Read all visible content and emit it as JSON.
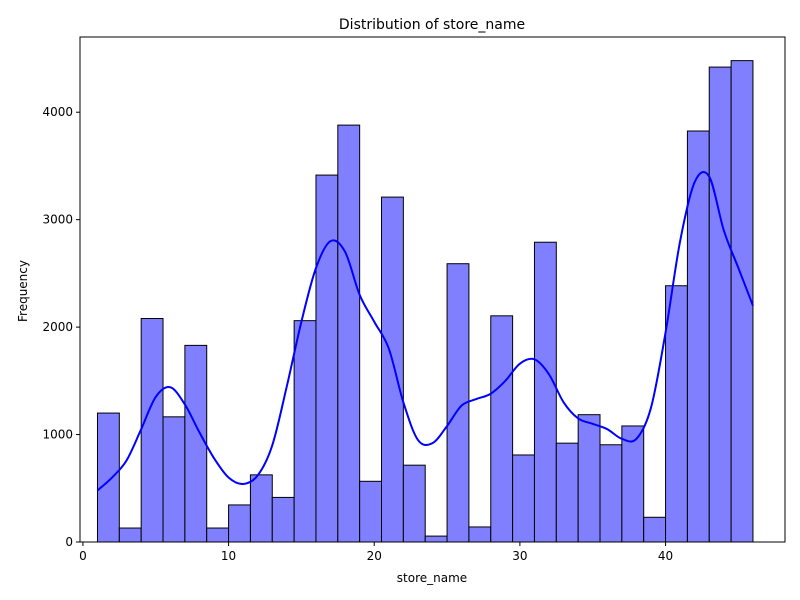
{
  "chart_data": {
    "type": "bar",
    "title": "Distribution of store_name",
    "xlabel": "store_name",
    "ylabel": "Frequency",
    "xlim": [
      -0.2,
      48.2
    ],
    "ylim": [
      0,
      4700
    ],
    "xticks": [
      0,
      10,
      20,
      30,
      40
    ],
    "yticks": [
      0,
      1000,
      2000,
      3000,
      4000
    ],
    "bar_color": "#8080ff",
    "edge_color": "#000000",
    "kde_color": "#0000ff",
    "bins": [
      {
        "start": 1.0,
        "end": 2.5,
        "count": 1200
      },
      {
        "start": 2.5,
        "end": 4.0,
        "count": 130
      },
      {
        "start": 4.0,
        "end": 5.5,
        "count": 2080
      },
      {
        "start": 5.5,
        "end": 7.0,
        "count": 1165
      },
      {
        "start": 7.0,
        "end": 8.5,
        "count": 1830
      },
      {
        "start": 8.5,
        "end": 10.0,
        "count": 130
      },
      {
        "start": 10.0,
        "end": 11.5,
        "count": 345
      },
      {
        "start": 11.5,
        "end": 13.0,
        "count": 625
      },
      {
        "start": 13.0,
        "end": 14.5,
        "count": 415
      },
      {
        "start": 14.5,
        "end": 16.0,
        "count": 2060
      },
      {
        "start": 16.0,
        "end": 17.5,
        "count": 3415
      },
      {
        "start": 17.5,
        "end": 19.0,
        "count": 3880
      },
      {
        "start": 19.0,
        "end": 20.5,
        "count": 565
      },
      {
        "start": 20.5,
        "end": 22.0,
        "count": 3210
      },
      {
        "start": 22.0,
        "end": 23.5,
        "count": 715
      },
      {
        "start": 23.5,
        "end": 25.0,
        "count": 55
      },
      {
        "start": 25.0,
        "end": 26.5,
        "count": 2590
      },
      {
        "start": 26.5,
        "end": 28.0,
        "count": 140
      },
      {
        "start": 28.0,
        "end": 29.5,
        "count": 2105
      },
      {
        "start": 29.5,
        "end": 31.0,
        "count": 810
      },
      {
        "start": 31.0,
        "end": 32.5,
        "count": 2790
      },
      {
        "start": 32.5,
        "end": 34.0,
        "count": 920
      },
      {
        "start": 34.0,
        "end": 35.5,
        "count": 1185
      },
      {
        "start": 35.5,
        "end": 37.0,
        "count": 905
      },
      {
        "start": 37.0,
        "end": 38.5,
        "count": 1080
      },
      {
        "start": 38.5,
        "end": 40.0,
        "count": 230
      },
      {
        "start": 40.0,
        "end": 41.5,
        "count": 2385
      },
      {
        "start": 41.5,
        "end": 43.0,
        "count": 3825
      },
      {
        "start": 43.0,
        "end": 44.5,
        "count": 4420
      },
      {
        "start": 44.5,
        "end": 46.0,
        "count": 4480
      }
    ],
    "kde": {
      "x": [
        1,
        2,
        3,
        4,
        5,
        6,
        7,
        8,
        9,
        10,
        11,
        12,
        13,
        14,
        15,
        16,
        17,
        18,
        19,
        20,
        21,
        22,
        23,
        24,
        25,
        26,
        27,
        28,
        29,
        30,
        31,
        32,
        33,
        34,
        35,
        36,
        37,
        38,
        39,
        40,
        41,
        42,
        43,
        44,
        45,
        46
      ],
      "y": [
        480,
        600,
        760,
        1050,
        1350,
        1440,
        1280,
        1020,
        780,
        600,
        540,
        620,
        900,
        1450,
        2050,
        2550,
        2800,
        2700,
        2300,
        2050,
        1800,
        1300,
        950,
        920,
        1080,
        1270,
        1330,
        1380,
        1500,
        1660,
        1700,
        1560,
        1300,
        1150,
        1100,
        1050,
        960,
        960,
        1250,
        1950,
        2800,
        3350,
        3400,
        2900,
        2550,
        2200
      ]
    }
  }
}
